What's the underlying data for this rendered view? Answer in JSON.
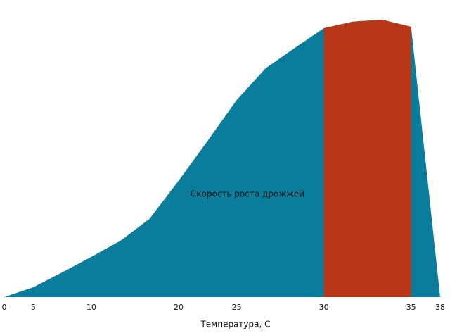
{
  "chart_data": {
    "type": "area",
    "x_label": "Температура, С",
    "categories": [
      "0",
      "5",
      null,
      "10",
      null,
      null,
      "20",
      null,
      "25",
      null,
      null,
      "30",
      null,
      null,
      "35",
      "38"
    ],
    "series": [
      {
        "name": "Скорость роста дрожжей",
        "color": "#0b7d9c",
        "values": [
          0,
          3.5,
          8.8,
          14.3,
          20,
          27.8,
          41.3,
          55.5,
          70,
          81.3,
          88.5,
          95.5,
          97.8,
          98.5,
          96,
          0
        ]
      }
    ],
    "highlight": {
      "from": "30",
      "to": "35",
      "color": "#b83716"
    },
    "ylim": [
      0,
      100
    ]
  }
}
